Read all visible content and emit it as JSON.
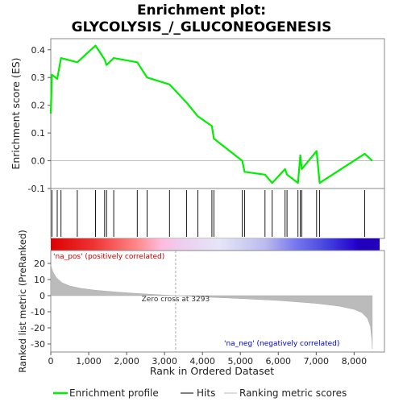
{
  "chart_data": {
    "type": "line",
    "title_line1": "Enrichment plot:",
    "title_line2": "GLYCOLYSIS_/_GLUCONEOGENESIS",
    "top_panel": {
      "ylabel": "Enrichment score (ES)",
      "ylim": [
        -0.1,
        0.44
      ],
      "yticks": [
        "0.4",
        "0.3",
        "0.2",
        "0.1",
        "0.0",
        "-0.1"
      ],
      "yticks_values": [
        0.4,
        0.3,
        0.2,
        0.1,
        0.0,
        -0.1
      ],
      "series": [
        {
          "name": "Enrichment profile",
          "color": "#00ee00",
          "x": [
            0,
            30,
            30,
            170,
            170,
            270,
            270,
            700,
            700,
            1180,
            1180,
            1420,
            1420,
            1470,
            1470,
            1660,
            1660,
            2280,
            2280,
            2540,
            2540,
            3130,
            3130,
            3580,
            3580,
            3880,
            3880,
            4250,
            4250,
            4300,
            4300,
            5050,
            5050,
            5110,
            5110,
            5650,
            5650,
            5840,
            5840,
            6180,
            6180,
            6230,
            6230,
            6520,
            6520,
            6580,
            6580,
            6620,
            6620,
            7010,
            7010,
            7090,
            7090,
            8280,
            8280,
            8480
          ],
          "y": [
            0.17,
            0.31,
            0.31,
            0.295,
            0.295,
            0.37,
            0.37,
            0.355,
            0.355,
            0.415,
            0.415,
            0.365,
            0.365,
            0.345,
            0.345,
            0.37,
            0.37,
            0.355,
            0.355,
            0.3,
            0.3,
            0.275,
            0.275,
            0.21,
            0.21,
            0.16,
            0.16,
            0.125,
            0.125,
            0.08,
            0.08,
            0.0,
            0.0,
            -0.04,
            -0.04,
            -0.05,
            -0.05,
            -0.08,
            -0.08,
            -0.03,
            -0.03,
            -0.05,
            -0.05,
            -0.08,
            -0.08,
            0.02,
            0.02,
            -0.03,
            -0.03,
            0.035,
            0.035,
            -0.08,
            -0.08,
            0.025,
            0.025,
            0.0
          ]
        }
      ]
    },
    "hits": [
      30,
      170,
      270,
      700,
      1180,
      1420,
      1470,
      1660,
      2280,
      2540,
      3130,
      3580,
      3880,
      4250,
      4300,
      5050,
      5110,
      5650,
      5840,
      6180,
      6230,
      6520,
      6580,
      6620,
      7010,
      7090,
      8280
    ],
    "bottom_panel": {
      "ylabel": "Ranked list metric (PreRanked)",
      "xlabel": "Rank in Ordered Dataset",
      "ylim": [
        -35,
        28
      ],
      "yticks": [
        "20",
        "10",
        "0",
        "-10",
        "-20",
        "-30"
      ],
      "yticks_values": [
        20,
        10,
        0,
        -10,
        -20,
        -30
      ],
      "xlim": [
        0,
        8800
      ],
      "xticks": [
        "0",
        "1,000",
        "2,000",
        "3,000",
        "4,000",
        "5,000",
        "6,000",
        "7,000",
        "8,000"
      ],
      "xticks_values": [
        0,
        1000,
        2000,
        3000,
        4000,
        5000,
        6000,
        7000,
        8000
      ],
      "pos_label": "'na_pos' (positively correlated)",
      "neg_label": "'na_neg' (negatively correlated)",
      "zero_cross_label": "Zero cross at 3293",
      "zero_cross": 3293,
      "total_rank": 8480,
      "metric_curve": {
        "x": [
          0,
          50,
          150,
          300,
          500,
          800,
          1200,
          1700,
          2300,
          2900,
          3293,
          4000,
          5000,
          6000,
          7000,
          7600,
          8000,
          8200,
          8350,
          8430,
          8470,
          8480
        ],
        "y": [
          19,
          15,
          11,
          8,
          6,
          4.5,
          3.3,
          2.3,
          1.3,
          0.5,
          0,
          -0.8,
          -1.8,
          -3,
          -4.8,
          -6.5,
          -8.5,
          -10.5,
          -14,
          -19,
          -28,
          -33
        ]
      }
    },
    "legend": [
      {
        "label": "Enrichment profile",
        "color": "#00ee00"
      },
      {
        "label": "Hits",
        "color": "#000000"
      },
      {
        "label": "Ranking metric scores",
        "color": "#bbbbbb"
      }
    ]
  }
}
